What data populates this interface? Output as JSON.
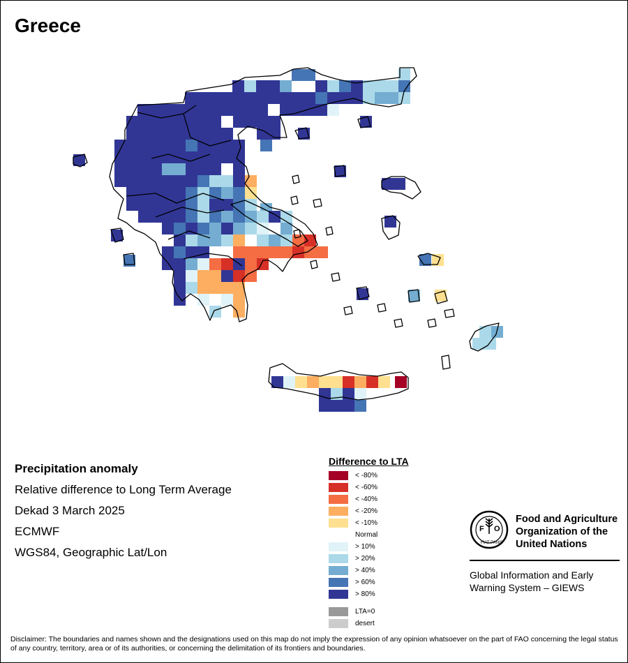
{
  "title": "Greece",
  "info": {
    "heading": "Precipitation anomaly",
    "lines": [
      "Relative difference to Long Term Average",
      "Dekad 3 March 2025",
      "ECMWF",
      "WGS84, Geographic Lat/Lon"
    ]
  },
  "legend": {
    "title": "Difference to LTA",
    "items": [
      {
        "label": "< -80%",
        "color": "#a50026",
        "key": "dry80"
      },
      {
        "label": "< -60%",
        "color": "#d73027",
        "key": "dry60"
      },
      {
        "label": "< -40%",
        "color": "#f46d43",
        "key": "dry40"
      },
      {
        "label": "< -20%",
        "color": "#fdae61",
        "key": "dry20"
      },
      {
        "label": "< -10%",
        "color": "#fee090",
        "key": "dry10"
      },
      {
        "label": "Normal",
        "color": "#ffffff",
        "key": "normal"
      },
      {
        "label": "> 10%",
        "color": "#e0f3f8",
        "key": "wet10"
      },
      {
        "label": "> 20%",
        "color": "#abd9e9",
        "key": "wet20"
      },
      {
        "label": "> 40%",
        "color": "#74add1",
        "key": "wet40"
      },
      {
        "label": "> 60%",
        "color": "#4575b4",
        "key": "wet60"
      },
      {
        "label": "> 80%",
        "color": "#313695",
        "key": "wet80"
      }
    ],
    "extra": [
      {
        "label": "LTA=0",
        "color": "#999999"
      },
      {
        "label": "desert",
        "color": "#cccccc"
      }
    ]
  },
  "logo": {
    "org_lines": [
      "Food and Agriculture",
      "Organization of the",
      "United Nations"
    ],
    "emblem_letters": "FAO",
    "emblem_motto": "FIAT PANIS",
    "giews_lines": [
      "Global Information and Early",
      "Warning System – GIEWS"
    ]
  },
  "disclaimer": "Disclaimer: The boundaries and names shown and the designations used on this map do not imply the expression of any opinion whatsoever on the part of FAO concerning the legal status of any country, territory, area or of its authorities, or concerning the delimitation of its frontiers and boundaries."
}
